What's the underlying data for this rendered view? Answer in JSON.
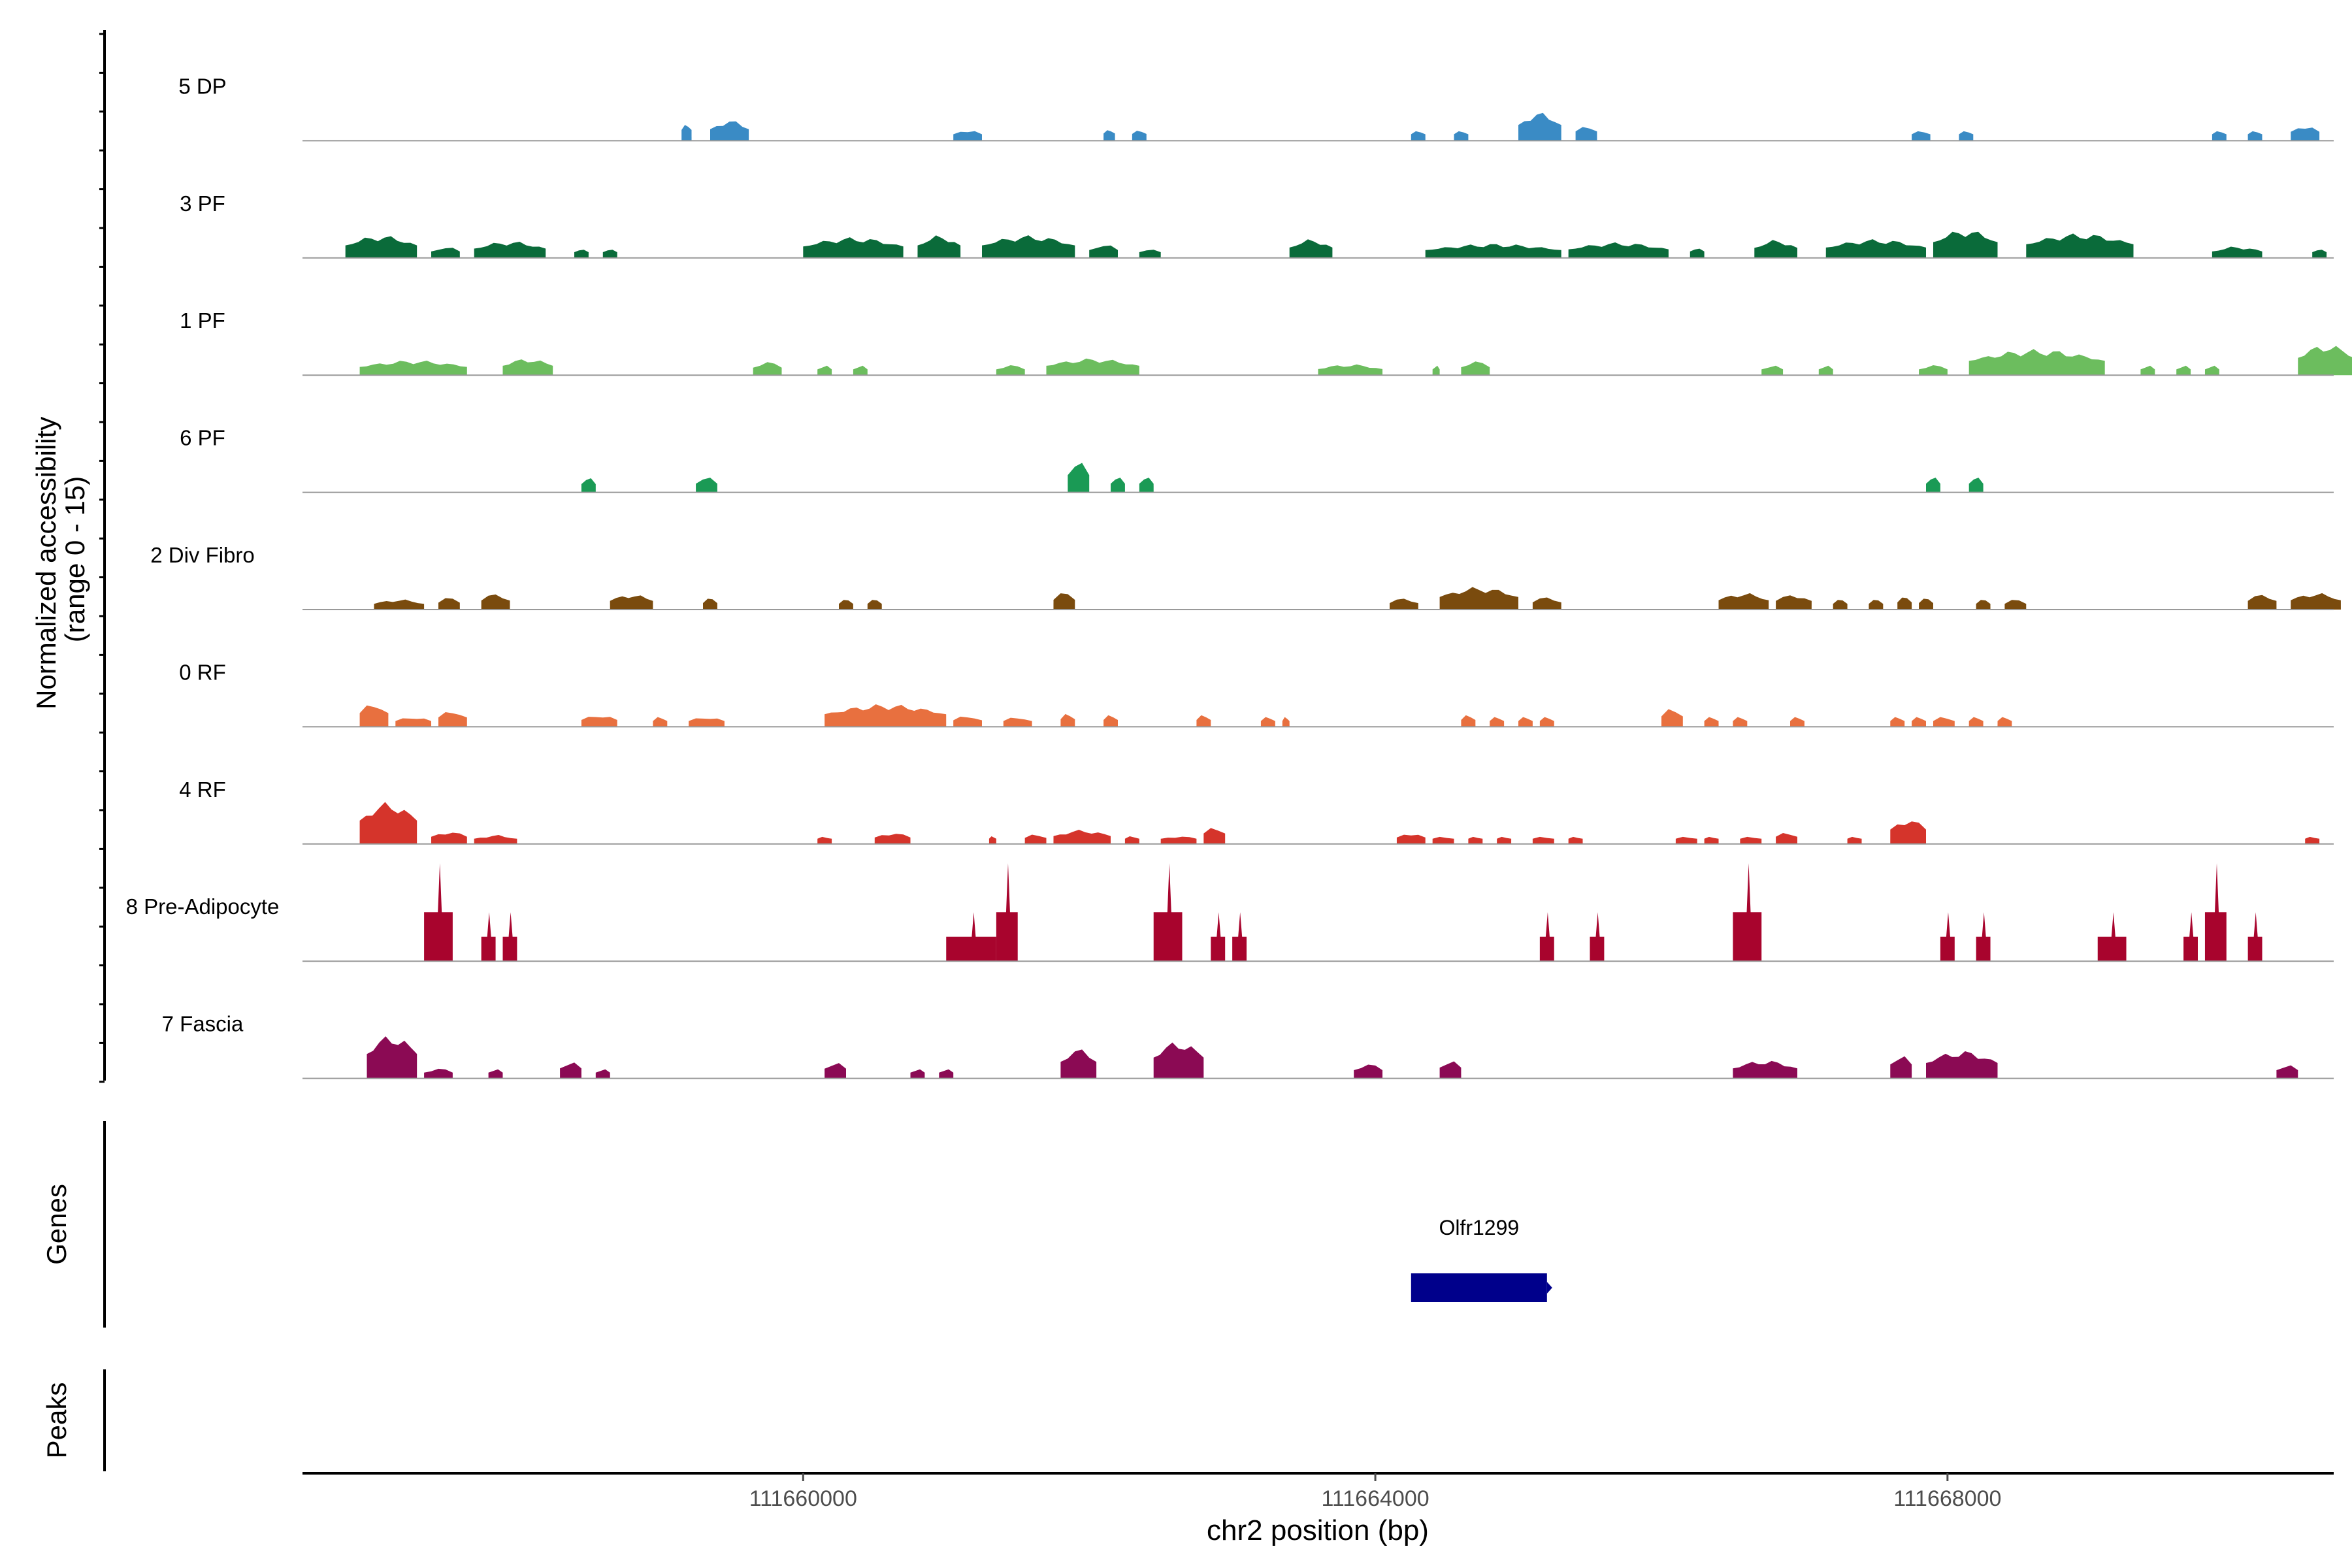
{
  "chart_data": {
    "type": "area",
    "title": "",
    "ylabel": "Normalized accessibility (range 0 - 15)",
    "ylabel_lines": [
      "Normalized accessibility",
      "(range 0 - 15)"
    ],
    "xlabel": "chr2 position (bp)",
    "xlim": [
      111656500,
      111670700
    ],
    "ylim": [
      0,
      15
    ],
    "x_ticks": [
      111660000,
      111664000,
      111668000
    ],
    "x_tick_labels": [
      "111660000",
      "111664000",
      "111668000"
    ],
    "series": [
      {
        "name": "5 DP",
        "color": "#3a8bc5",
        "peaks": [
          [
            111659150,
            111659220,
            3.0
          ],
          [
            111659350,
            111659620,
            3.2
          ],
          [
            111661050,
            111661250,
            1.8
          ],
          [
            111662100,
            111662180,
            2.0
          ],
          [
            111662300,
            111662400,
            1.9
          ],
          [
            111664250,
            111664350,
            1.8
          ],
          [
            111664550,
            111664650,
            1.8
          ],
          [
            111665000,
            111665300,
            4.4
          ],
          [
            111665400,
            111665550,
            2.6
          ],
          [
            111667750,
            111667880,
            1.8
          ],
          [
            111668080,
            111668180,
            1.8
          ],
          [
            111669850,
            111669950,
            1.8
          ],
          [
            111670100,
            111670200,
            1.8
          ],
          [
            111670400,
            111670600,
            2.5
          ]
        ]
      },
      {
        "name": "3 PF",
        "color": "#0a6b3a",
        "peaks": [
          [
            111656800,
            111657300,
            3.5
          ],
          [
            111657400,
            111657600,
            1.8
          ],
          [
            111657700,
            111658200,
            2.6
          ],
          [
            111658400,
            111658500,
            1.6
          ],
          [
            111658600,
            111658700,
            1.6
          ],
          [
            111660000,
            111660700,
            3.2
          ],
          [
            111660800,
            111661100,
            3.5
          ],
          [
            111661250,
            111661900,
            3.5
          ],
          [
            111662000,
            111662200,
            2.2
          ],
          [
            111662350,
            111662500,
            1.6
          ],
          [
            111663400,
            111663700,
            2.9
          ],
          [
            111664350,
            111665300,
            2.2
          ],
          [
            111665350,
            111666050,
            2.4
          ],
          [
            111666200,
            111666300,
            1.8
          ],
          [
            111666650,
            111666950,
            2.8
          ],
          [
            111667150,
            111667850,
            2.9
          ],
          [
            111667900,
            111668350,
            4.4
          ],
          [
            111668550,
            111669300,
            3.8
          ],
          [
            111669850,
            111670200,
            1.8
          ],
          [
            111670550,
            111670650,
            1.6
          ]
        ]
      },
      {
        "name": "1 PF",
        "color": "#6cbd5e",
        "peaks": [
          [
            111656900,
            111657650,
            2.3
          ],
          [
            111657900,
            111658250,
            2.6
          ],
          [
            111659650,
            111659850,
            2.1
          ],
          [
            111660100,
            111660200,
            1.6
          ],
          [
            111660350,
            111660450,
            1.6
          ],
          [
            111661350,
            111661550,
            1.6
          ],
          [
            111661700,
            111662350,
            2.6
          ],
          [
            111663600,
            111664050,
            1.7
          ],
          [
            111664400,
            111664450,
            1.6
          ],
          [
            111664600,
            111664800,
            2.2
          ],
          [
            111666700,
            111666850,
            1.6
          ],
          [
            111667100,
            111667200,
            1.6
          ],
          [
            111667800,
            111668000,
            1.6
          ],
          [
            111668150,
            111669100,
            4.0
          ],
          [
            111669350,
            111669450,
            1.6
          ],
          [
            111669600,
            111669700,
            1.6
          ],
          [
            111669800,
            111669900,
            1.6
          ],
          [
            111670450,
            111670850,
            4.8
          ]
        ]
      },
      {
        "name": "6 PF",
        "color": "#1a9a55",
        "peaks": [
          [
            111658450,
            111658550,
            2.3
          ],
          [
            111659250,
            111659400,
            2.4
          ],
          [
            111661850,
            111662000,
            4.8
          ],
          [
            111662150,
            111662250,
            2.4
          ],
          [
            111662350,
            111662450,
            2.4
          ],
          [
            111667850,
            111667950,
            2.4
          ],
          [
            111668150,
            111668250,
            2.4
          ]
        ]
      },
      {
        "name": "2 Div Fibro",
        "color": "#7a4b0e",
        "peaks": [
          [
            111657000,
            111657350,
            1.6
          ],
          [
            111657450,
            111657600,
            1.9
          ],
          [
            111657750,
            111657950,
            2.5
          ],
          [
            111658650,
            111658950,
            2.4
          ],
          [
            111659300,
            111659400,
            1.8
          ],
          [
            111660250,
            111660350,
            1.6
          ],
          [
            111660450,
            111660550,
            1.6
          ],
          [
            111661750,
            111661900,
            2.7
          ],
          [
            111664100,
            111664300,
            1.8
          ],
          [
            111664450,
            111665000,
            3.5
          ],
          [
            111665100,
            111665300,
            2.0
          ],
          [
            111666400,
            111666750,
            2.6
          ],
          [
            111666800,
            111667050,
            2.4
          ],
          [
            111667200,
            111667300,
            1.6
          ],
          [
            111667450,
            111667550,
            1.6
          ],
          [
            111667650,
            111667750,
            2.0
          ],
          [
            111667800,
            111667900,
            1.8
          ],
          [
            111668200,
            111668300,
            1.6
          ],
          [
            111668400,
            111668550,
            1.6
          ],
          [
            111670100,
            111670300,
            2.4
          ],
          [
            111670400,
            111670750,
            2.6
          ]
        ]
      },
      {
        "name": "0 RF",
        "color": "#e8703f",
        "peaks": [
          [
            111656900,
            111657100,
            3.8
          ],
          [
            111657150,
            111657400,
            1.6
          ],
          [
            111657450,
            111657650,
            2.6
          ],
          [
            111658450,
            111658700,
            1.9
          ],
          [
            111658950,
            111659050,
            1.6
          ],
          [
            111659200,
            111659450,
            1.6
          ],
          [
            111660150,
            111661000,
            3.5
          ],
          [
            111661050,
            111661250,
            1.8
          ],
          [
            111661400,
            111661600,
            1.6
          ],
          [
            111661800,
            111661900,
            2.1
          ],
          [
            111662100,
            111662200,
            1.9
          ],
          [
            111662750,
            111662850,
            1.9
          ],
          [
            111663200,
            111663300,
            1.6
          ],
          [
            111663350,
            111663400,
            1.6
          ],
          [
            111664600,
            111664700,
            1.9
          ],
          [
            111664800,
            111664900,
            1.6
          ],
          [
            111665000,
            111665100,
            1.6
          ],
          [
            111665150,
            111665250,
            1.6
          ],
          [
            111666000,
            111666150,
            2.9
          ],
          [
            111666300,
            111666400,
            1.6
          ],
          [
            111666500,
            111666600,
            1.6
          ],
          [
            111666900,
            111667000,
            1.6
          ],
          [
            111667600,
            111667700,
            1.6
          ],
          [
            111667750,
            111667850,
            1.6
          ],
          [
            111667900,
            111668050,
            1.6
          ],
          [
            111668150,
            111668250,
            1.6
          ],
          [
            111668350,
            111668450,
            1.6
          ]
        ]
      },
      {
        "name": "4 RF",
        "color": "#d5342b",
        "peaks": [
          [
            111656900,
            111657300,
            6.5
          ],
          [
            111657400,
            111657650,
            2.0
          ],
          [
            111657700,
            111658000,
            1.4
          ],
          [
            111660100,
            111660200,
            1.3
          ],
          [
            111660500,
            111660750,
            1.8
          ],
          [
            111661300,
            111661350,
            1.4
          ],
          [
            111661550,
            111661700,
            1.7
          ],
          [
            111661750,
            111662150,
            2.2
          ],
          [
            111662250,
            111662350,
            1.4
          ],
          [
            111662500,
            111662750,
            1.3
          ],
          [
            111662800,
            111662950,
            2.9
          ],
          [
            111664150,
            111664350,
            1.8
          ],
          [
            111664400,
            111664550,
            1.3
          ],
          [
            111664650,
            111664750,
            1.3
          ],
          [
            111664850,
            111664950,
            1.3
          ],
          [
            111665100,
            111665250,
            1.3
          ],
          [
            111665350,
            111665450,
            1.3
          ],
          [
            111666100,
            111666250,
            1.3
          ],
          [
            111666300,
            111666400,
            1.3
          ],
          [
            111666550,
            111666700,
            1.3
          ],
          [
            111666800,
            111666950,
            2.0
          ],
          [
            111667300,
            111667400,
            1.3
          ],
          [
            111667600,
            111667850,
            4.0
          ],
          [
            111670500,
            111670600,
            1.3
          ]
        ]
      },
      {
        "name": "8 Pre-Adipocyte",
        "color": "#a8042d",
        "peaks": [
          [
            111657350,
            111657550,
            15.0
          ],
          [
            111657750,
            111657850,
            7.5
          ],
          [
            111657900,
            111658000,
            7.5
          ],
          [
            111661000,
            111661350,
            7.5
          ],
          [
            111661350,
            111661500,
            15.0
          ],
          [
            111662450,
            111662650,
            15.0
          ],
          [
            111662850,
            111662950,
            7.5
          ],
          [
            111663000,
            111663100,
            7.5
          ],
          [
            111665150,
            111665250,
            7.5
          ],
          [
            111665500,
            111665600,
            7.5
          ],
          [
            111666500,
            111666700,
            15.0
          ],
          [
            111667950,
            111668050,
            7.5
          ],
          [
            111668200,
            111668300,
            7.5
          ],
          [
            111669050,
            111669250,
            7.5
          ],
          [
            111669650,
            111669750,
            7.5
          ],
          [
            111669800,
            111669950,
            15.0
          ],
          [
            111670100,
            111670200,
            7.5
          ]
        ]
      },
      {
        "name": "7 Fascia",
        "color": "#8b0a54",
        "peaks": [
          [
            111656950,
            111657300,
            6.8
          ],
          [
            111657350,
            111657550,
            1.6
          ],
          [
            111657800,
            111657900,
            1.6
          ],
          [
            111658300,
            111658450,
            2.8
          ],
          [
            111658550,
            111658650,
            1.6
          ],
          [
            111660150,
            111660300,
            2.7
          ],
          [
            111660750,
            111660850,
            1.6
          ],
          [
            111660950,
            111661050,
            1.6
          ],
          [
            111661800,
            111662050,
            4.6
          ],
          [
            111662450,
            111662800,
            5.8
          ],
          [
            111663850,
            111664050,
            2.3
          ],
          [
            111664450,
            111664600,
            3.0
          ],
          [
            111666500,
            111666950,
            2.8
          ],
          [
            111667600,
            111667750,
            3.9
          ],
          [
            111667850,
            111668350,
            4.3
          ],
          [
            111670300,
            111670450,
            2.3
          ]
        ]
      }
    ],
    "genes": {
      "label": "Genes",
      "items": [
        {
          "name": "Olfr1299",
          "start": 111664250,
          "end": 111665200,
          "color": "#00008b"
        }
      ]
    },
    "peaks_track": {
      "label": "Peaks"
    }
  }
}
